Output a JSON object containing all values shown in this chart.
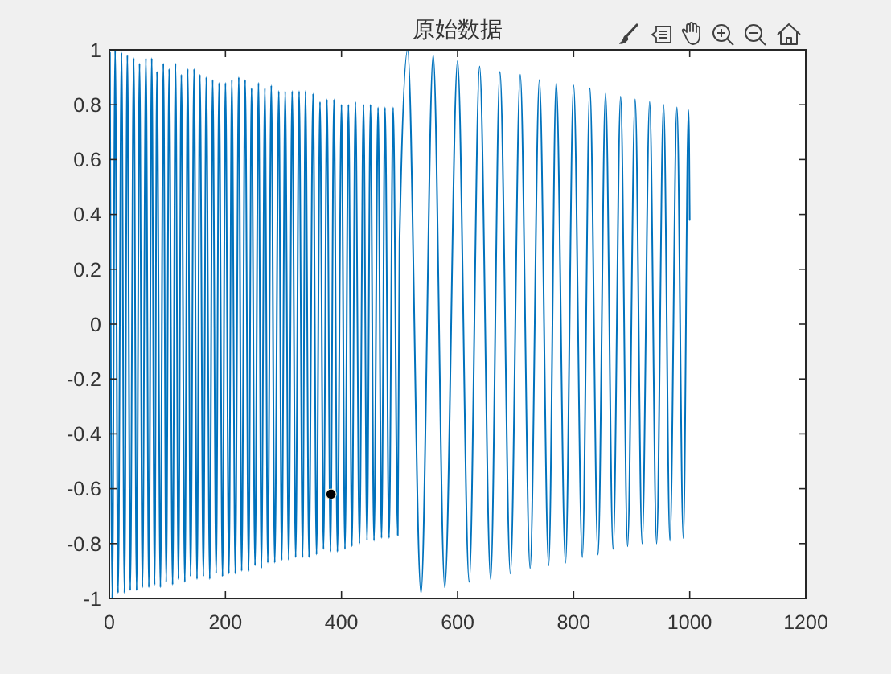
{
  "chart_data": {
    "type": "line",
    "title": "原始数据",
    "xlim": [
      0,
      1200
    ],
    "xticks": [
      0,
      200,
      400,
      600,
      800,
      1000,
      1200
    ],
    "ylim": [
      -1,
      1
    ],
    "yticks": [
      -1,
      -0.8,
      -0.6,
      -0.4,
      -0.2,
      0,
      0.2,
      0.4,
      0.6,
      0.8,
      1
    ],
    "series": [
      {
        "color": "#0072bd",
        "x": [
          1,
          5,
          10,
          15,
          21,
          26,
          31,
          36,
          42,
          47,
          52,
          57,
          63,
          68,
          73,
          78,
          82,
          88,
          93,
          98,
          103,
          109,
          114,
          119,
          124,
          130,
          135,
          140,
          146,
          151,
          156,
          162,
          167,
          173,
          178,
          184,
          189,
          195,
          200,
          206,
          211,
          217,
          223,
          228,
          234,
          240,
          245,
          251,
          257,
          262,
          268,
          273,
          279,
          285,
          292,
          297,
          303,
          309,
          315,
          321,
          327,
          333,
          338,
          344,
          351,
          357,
          363,
          369,
          375,
          381,
          387,
          393,
          400,
          406,
          412,
          418,
          424,
          431,
          438,
          444,
          450,
          456,
          463,
          469,
          475,
          482,
          489,
          497,
          500,
          514,
          537,
          558,
          578,
          600,
          620,
          638,
          657,
          673,
          691,
          708,
          725,
          741,
          757,
          770,
          786,
          800,
          815,
          828,
          842,
          855,
          868,
          881,
          893,
          906,
          918,
          931,
          943,
          955,
          966,
          978,
          989,
          998,
          1000
        ],
        "values": [
          0.99,
          -1.0,
          1.0,
          -0.98,
          0.99,
          -0.98,
          0.98,
          -0.97,
          0.97,
          -0.97,
          0.95,
          -0.96,
          0.97,
          -0.96,
          0.97,
          -0.95,
          0.92,
          -0.96,
          0.95,
          -0.94,
          0.93,
          -0.95,
          0.95,
          -0.93,
          0.91,
          -0.94,
          0.93,
          -0.92,
          0.93,
          -0.93,
          0.91,
          -0.92,
          0.9,
          -0.93,
          0.89,
          -0.91,
          0.88,
          -0.92,
          0.88,
          -0.91,
          0.89,
          -0.91,
          0.9,
          -0.9,
          0.89,
          -0.9,
          0.86,
          -0.88,
          0.88,
          -0.89,
          0.86,
          -0.87,
          0.87,
          -0.87,
          0.85,
          -0.86,
          0.85,
          -0.86,
          0.85,
          -0.85,
          0.85,
          -0.85,
          0.85,
          -0.85,
          0.84,
          -0.84,
          0.81,
          -0.82,
          0.82,
          -0.83,
          0.82,
          -0.83,
          0.8,
          -0.82,
          0.8,
          -0.81,
          0.81,
          -0.8,
          0.8,
          -0.79,
          0.8,
          -0.79,
          0.79,
          -0.78,
          0.79,
          -0.78,
          0.79,
          -0.77,
          0.3,
          1.0,
          -0.98,
          0.98,
          -0.96,
          0.96,
          -0.94,
          0.94,
          -0.93,
          0.92,
          -0.91,
          0.91,
          -0.89,
          0.89,
          -0.88,
          0.88,
          -0.87,
          0.87,
          -0.85,
          0.86,
          -0.84,
          0.84,
          -0.82,
          0.83,
          -0.81,
          0.82,
          -0.8,
          0.81,
          -0.8,
          0.8,
          -0.79,
          0.79,
          -0.78,
          0.78,
          0.38
        ]
      },
      {
        "type": "scatter",
        "color": "#000000",
        "marker": "circle",
        "x": [
          382
        ],
        "values": [
          -0.62
        ]
      }
    ]
  }
}
